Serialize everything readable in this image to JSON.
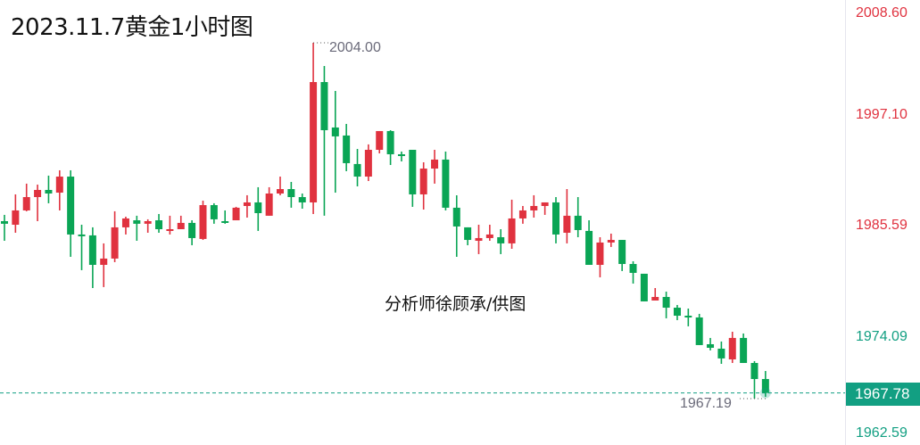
{
  "title": "2023.11.7黄金1小时图",
  "watermark": "分析师徐顾承/供图",
  "chart_data": {
    "type": "candlestick",
    "title": "2023.11.7黄金1小时图",
    "up_color": "#e0323f",
    "down_color": "#0aa555",
    "grid": false,
    "y_axis": {
      "position": "right",
      "ticks": [
        "2008.60",
        "1997.10",
        "1985.59",
        "1974.09",
        "1962.59"
      ]
    },
    "high_label": "2004.00",
    "low_label": "1967.19",
    "current_price": "1967.78",
    "current_price_color": "#129f82",
    "candles": [
      [
        1985.55,
        1986.2,
        1983.52,
        1985.28
      ],
      [
        1985.18,
        1988.32,
        1984.35,
        1986.66
      ],
      [
        1986.66,
        1989.43,
        1986.57,
        1988.04
      ],
      [
        1988.04,
        1989.33,
        1985.55,
        1988.78
      ],
      [
        1988.78,
        1990.26,
        1987.4,
        1988.41
      ],
      [
        1988.5,
        1990.81,
        1986.66,
        1990.16
      ],
      [
        1990.16,
        1990.81,
        1981.86,
        1984.17
      ],
      [
        1984.17,
        1985.18,
        1980.48,
        1984.08
      ],
      [
        1984.08,
        1984.91,
        1978.63,
        1981.03
      ],
      [
        1981.03,
        1983.25,
        1978.73,
        1981.68
      ],
      [
        1981.68,
        1986.57,
        1981.31,
        1984.91
      ],
      [
        1984.91,
        1986.01,
        1984.17,
        1985.83
      ],
      [
        1985.64,
        1986.11,
        1983.52,
        1985.28
      ],
      [
        1985.28,
        1985.74,
        1984.35,
        1985.55
      ],
      [
        1985.64,
        1986.29,
        1984.35,
        1984.72
      ],
      [
        1984.63,
        1986.11,
        1984.17,
        1984.72
      ],
      [
        1984.72,
        1986.11,
        1984.72,
        1985.37
      ],
      [
        1985.37,
        1985.64,
        1983.06,
        1983.8
      ],
      [
        1983.71,
        1987.67,
        1983.61,
        1987.21
      ],
      [
        1987.21,
        1987.4,
        1985.28,
        1985.74
      ],
      [
        1985.55,
        1986.66,
        1985.28,
        1985.46
      ],
      [
        1985.64,
        1987.03,
        1985.64,
        1986.94
      ],
      [
        1987.12,
        1988.23,
        1985.92,
        1987.49
      ],
      [
        1987.49,
        1989.06,
        1984.54,
        1986.38
      ],
      [
        1986.11,
        1989.06,
        1986.11,
        1988.41
      ],
      [
        1988.41,
        1990.16,
        1988.23,
        1988.87
      ],
      [
        1988.87,
        1989.61,
        1986.94,
        1988.04
      ],
      [
        1988.04,
        1988.41,
        1986.84,
        1987.49
      ],
      [
        1987.49,
        2004.0,
        1986.29,
        1999.94
      ],
      [
        1999.94,
        2001.6,
        1986.11,
        1994.96
      ],
      [
        1995.24,
        1999.02,
        1988.5,
        1994.32
      ],
      [
        1994.41,
        1995.61,
        1990.72,
        1991.55
      ],
      [
        1991.46,
        1993.02,
        1989.15,
        1990.16
      ],
      [
        1990.16,
        1993.49,
        1989.7,
        1992.93
      ],
      [
        1992.93,
        1994.87,
        1992.56,
        1994.87
      ],
      [
        1994.87,
        1994.96,
        1991.36,
        1992.47
      ],
      [
        1992.47,
        1992.75,
        1991.73,
        1992.38
      ],
      [
        1992.93,
        1992.93,
        1987.03,
        1988.32
      ],
      [
        1988.32,
        1991.64,
        1986.75,
        1990.99
      ],
      [
        1990.99,
        1992.93,
        1989.43,
        1991.92
      ],
      [
        1991.92,
        1992.75,
        1986.66,
        1986.94
      ],
      [
        1986.94,
        1988.23,
        1981.86,
        1985.0
      ],
      [
        1984.91,
        1984.91,
        1983.06,
        1983.61
      ],
      [
        1983.52,
        1985.18,
        1982.14,
        1983.8
      ],
      [
        1983.8,
        1985.18,
        1983.52,
        1984.17
      ],
      [
        1983.89,
        1984.72,
        1982.14,
        1983.25
      ],
      [
        1983.25,
        1987.77,
        1982.69,
        1985.83
      ],
      [
        1985.83,
        1987.12,
        1985.28,
        1986.66
      ],
      [
        1986.66,
        1988.23,
        1985.92,
        1987.12
      ],
      [
        1987.12,
        1987.49,
        1986.2,
        1987.49
      ],
      [
        1987.49,
        1988.04,
        1983.25,
        1984.17
      ],
      [
        1984.35,
        1988.87,
        1983.25,
        1986.11
      ],
      [
        1986.11,
        1988.04,
        1983.89,
        1984.63
      ],
      [
        1984.54,
        1985.64,
        1981.03,
        1981.03
      ],
      [
        1981.03,
        1983.89,
        1979.74,
        1983.34
      ],
      [
        1983.34,
        1984.26,
        1982.88,
        1983.61
      ],
      [
        1983.61,
        1983.61,
        1980.39,
        1981.12
      ],
      [
        1981.12,
        1981.4,
        1979.09,
        1980.2
      ],
      [
        1980.11,
        1980.11,
        1977.25,
        1977.25
      ],
      [
        1977.34,
        1978.63,
        1977.34,
        1977.71
      ],
      [
        1977.71,
        1978.26,
        1975.5,
        1976.6
      ],
      [
        1976.6,
        1976.88,
        1975.31,
        1975.77
      ],
      [
        1975.77,
        1976.51,
        1974.67,
        1975.68
      ],
      [
        1975.59,
        1975.96,
        1972.73,
        1972.73
      ],
      [
        1972.82,
        1973.47,
        1972.18,
        1972.45
      ],
      [
        1972.36,
        1973.1,
        1970.79,
        1971.35
      ],
      [
        1971.25,
        1974.11,
        1970.88,
        1973.47
      ],
      [
        1973.47,
        1973.93,
        1970.88,
        1970.88
      ],
      [
        1970.88,
        1971.07,
        1967.19,
        1969.22
      ],
      [
        1969.22,
        1970.05,
        1967.38,
        1967.78
      ]
    ]
  }
}
